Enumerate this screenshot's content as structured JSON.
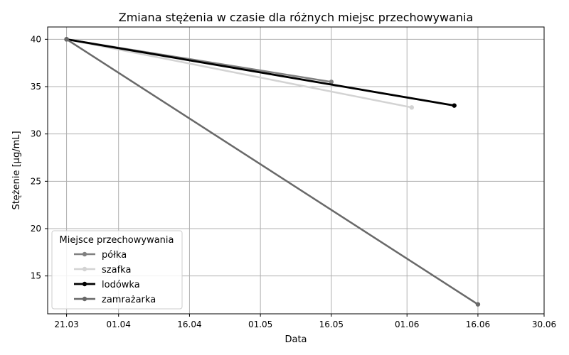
{
  "chart_data": {
    "type": "line",
    "title": "Zmiana stężenia w czasie dla różnych miejsc przechowywania",
    "xlabel": "Data",
    "ylabel": "Stężenie [μg/mL]",
    "x_ticks": [
      {
        "date": "2024-03-21",
        "label": "21.03"
      },
      {
        "date": "2024-04-01",
        "label": "01.04"
      },
      {
        "date": "2024-04-16",
        "label": "16.04"
      },
      {
        "date": "2024-05-01",
        "label": "01.05"
      },
      {
        "date": "2024-05-16",
        "label": "16.05"
      },
      {
        "date": "2024-06-01",
        "label": "01.06"
      },
      {
        "date": "2024-06-16",
        "label": "16.06"
      },
      {
        "date": "2024-06-30",
        "label": "30.06"
      }
    ],
    "xlim": [
      "2024-03-17",
      "2024-06-30"
    ],
    "ylim": [
      11,
      41.3
    ],
    "y_ticks": [
      15,
      20,
      25,
      30,
      35,
      40
    ],
    "grid": true,
    "legend_title": "Miejsce przechowywania",
    "legend_position": "lower-left",
    "series": [
      {
        "name": "półka",
        "color": "#808080",
        "width": 2.5,
        "points": [
          {
            "x": "2024-03-21",
            "y": 40
          },
          {
            "x": "2024-05-16",
            "y": 35.5
          }
        ]
      },
      {
        "name": "szafka",
        "color": "#d3d3d3",
        "width": 2.5,
        "points": [
          {
            "x": "2024-03-21",
            "y": 40
          },
          {
            "x": "2024-06-02",
            "y": 32.8
          }
        ]
      },
      {
        "name": "lodówka",
        "color": "#000000",
        "width": 2.8,
        "points": [
          {
            "x": "2024-03-21",
            "y": 40
          },
          {
            "x": "2024-06-11",
            "y": 33
          }
        ]
      },
      {
        "name": "zamrażarka",
        "color": "#696969",
        "width": 2.5,
        "points": [
          {
            "x": "2024-03-21",
            "y": 40
          },
          {
            "x": "2024-06-16",
            "y": 12
          }
        ]
      }
    ]
  }
}
